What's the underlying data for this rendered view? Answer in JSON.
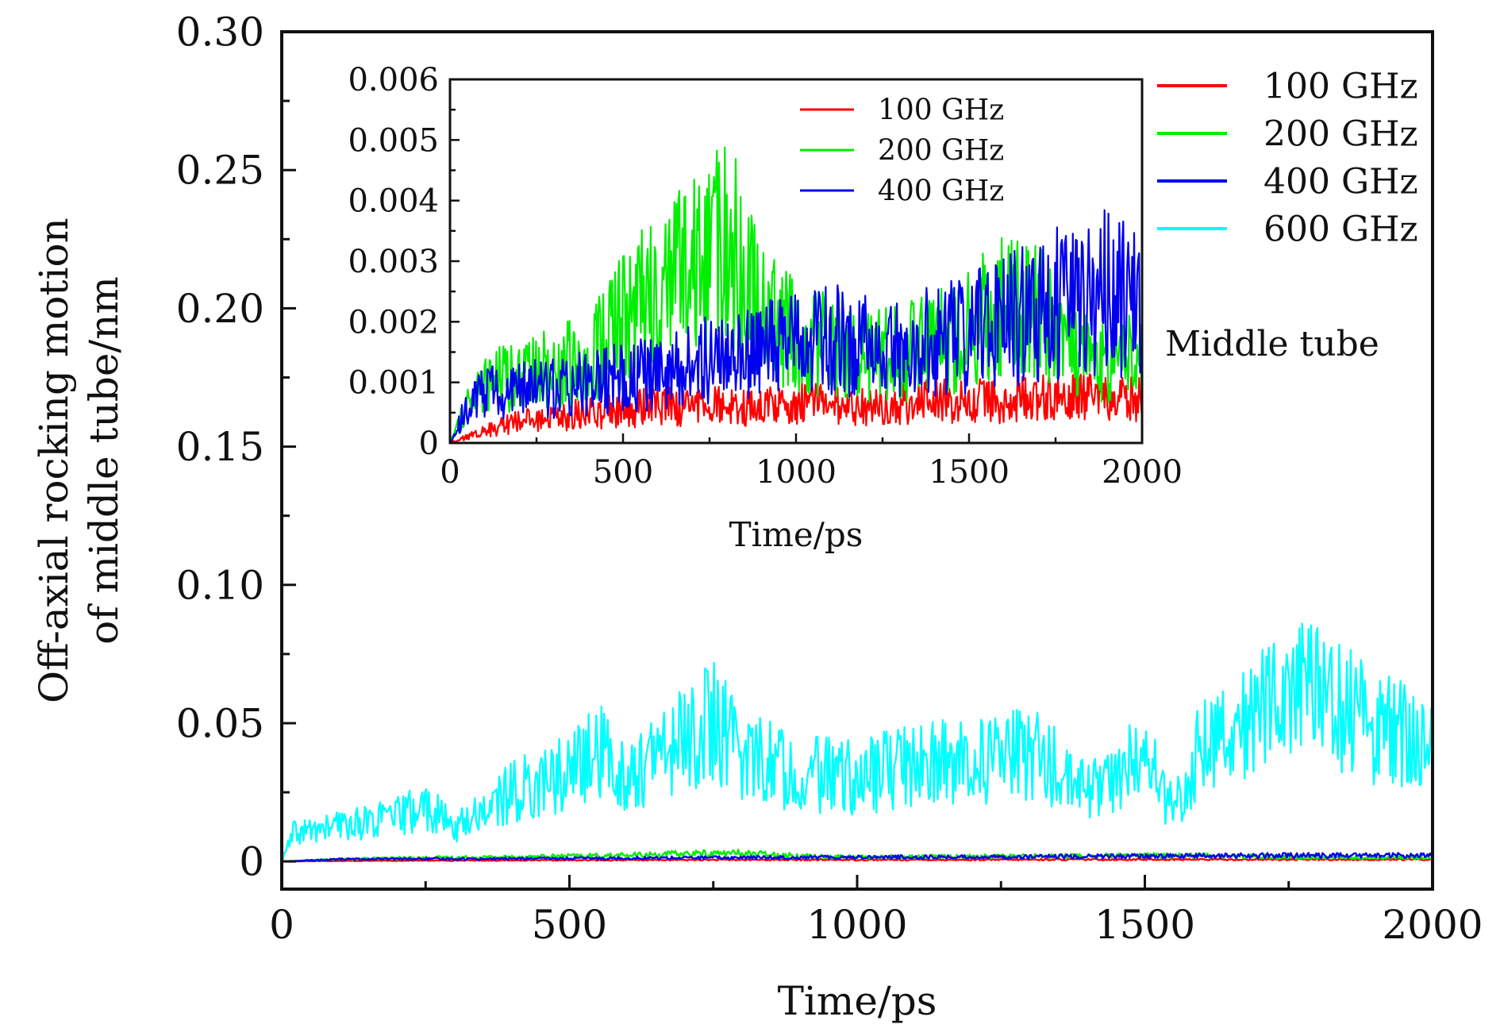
{
  "chart_data": [
    {
      "type": "line",
      "name": "main",
      "xlabel": "Time/ps",
      "ylabel": [
        "Off-axial rocking motion",
        "of middle tube/nm"
      ],
      "xlim": [
        0,
        2000
      ],
      "ylim": [
        -0.01,
        0.3
      ],
      "x_ticks": [
        0,
        500,
        1000,
        1500,
        2000
      ],
      "y_ticks": [
        0,
        0.05,
        0.1,
        0.15,
        0.2,
        0.25,
        0.3
      ],
      "x_tick_labels": [
        "0",
        "500",
        "1000",
        "1500",
        "2000"
      ],
      "y_tick_labels": [
        "0",
        "0.05",
        "0.10",
        "0.15",
        "0.20",
        "0.25",
        "0.30"
      ],
      "legend_placement": "top-right",
      "annotation": "Middle tube",
      "series": [
        {
          "name": "100 GHz",
          "color": "#ff0000",
          "x": [
            0,
            100,
            200,
            400,
            600,
            800,
            1000,
            1200,
            1400,
            1600,
            1800,
            2000
          ],
          "y": [
            0,
            0.0002,
            0.0003,
            0.0004,
            0.0005,
            0.0006,
            0.0006,
            0.0006,
            0.0007,
            0.0007,
            0.0007,
            0.0007
          ]
        },
        {
          "name": "200 GHz",
          "color": "#00ee00",
          "x": [
            0,
            100,
            200,
            400,
            600,
            700,
            800,
            900,
            1000,
            1200,
            1400,
            1600,
            1800,
            2000
          ],
          "y": [
            0,
            0.0008,
            0.0012,
            0.0016,
            0.0022,
            0.0028,
            0.003,
            0.002,
            0.0016,
            0.0018,
            0.002,
            0.0022,
            0.0014,
            0.0014
          ]
        },
        {
          "name": "400 GHz",
          "color": "#0000ee",
          "x": [
            0,
            100,
            200,
            400,
            600,
            800,
            1000,
            1200,
            1400,
            1600,
            1800,
            2000
          ],
          "y": [
            0,
            0.0008,
            0.0009,
            0.001,
            0.0012,
            0.0014,
            0.0016,
            0.0016,
            0.0018,
            0.002,
            0.0022,
            0.0021
          ]
        },
        {
          "name": "600 GHz",
          "color": "#00ffff",
          "x": [
            0,
            20,
            100,
            200,
            250,
            300,
            400,
            500,
            550,
            600,
            700,
            750,
            800,
            900,
            1000,
            1100,
            1200,
            1300,
            1400,
            1500,
            1550,
            1600,
            1700,
            1750,
            1800,
            1900,
            2000
          ],
          "y": [
            0,
            0.01,
            0.013,
            0.016,
            0.02,
            0.012,
            0.025,
            0.032,
            0.04,
            0.03,
            0.045,
            0.05,
            0.04,
            0.032,
            0.03,
            0.036,
            0.035,
            0.04,
            0.025,
            0.038,
            0.018,
            0.045,
            0.055,
            0.065,
            0.06,
            0.05,
            0.04
          ]
        }
      ]
    },
    {
      "type": "line",
      "name": "inset",
      "xlabel": "Time/ps",
      "ylabel": "",
      "xlim": [
        0,
        2000
      ],
      "ylim": [
        0,
        0.006
      ],
      "x_ticks": [
        0,
        500,
        1000,
        1500,
        2000
      ],
      "y_ticks": [
        0,
        0.001,
        0.002,
        0.003,
        0.004,
        0.005,
        0.006
      ],
      "x_tick_labels": [
        "0",
        "500",
        "1000",
        "1500",
        "2000"
      ],
      "y_tick_labels": [
        "0",
        "0.001",
        "0.002",
        "0.003",
        "0.004",
        "0.005",
        "0.006"
      ],
      "legend_placement": "top-center",
      "series": [
        {
          "name": "100 GHz",
          "color": "#ff0000",
          "x": [
            0,
            100,
            200,
            300,
            400,
            600,
            800,
            1000,
            1200,
            1400,
            1600,
            1800,
            2000
          ],
          "y": [
            0,
            0.0002,
            0.00035,
            0.0004,
            0.0005,
            0.0006,
            0.0006,
            0.00065,
            0.0006,
            0.0007,
            0.0007,
            0.00075,
            0.0007
          ]
        },
        {
          "name": "200 GHz",
          "color": "#00ee00",
          "x": [
            0,
            50,
            100,
            200,
            300,
            400,
            500,
            600,
            700,
            800,
            850,
            900,
            1000,
            1100,
            1200,
            1300,
            1400,
            1500,
            1600,
            1700,
            1800,
            1900,
            2000
          ],
          "y": [
            0,
            0.0006,
            0.0009,
            0.0012,
            0.0012,
            0.0015,
            0.002,
            0.0025,
            0.003,
            0.0032,
            0.003,
            0.0022,
            0.0018,
            0.0016,
            0.0014,
            0.0015,
            0.0016,
            0.0019,
            0.0022,
            0.0021,
            0.0017,
            0.0013,
            0.0014
          ]
        },
        {
          "name": "400 GHz",
          "color": "#0000ee",
          "x": [
            0,
            50,
            100,
            200,
            300,
            400,
            500,
            600,
            700,
            800,
            900,
            1000,
            1100,
            1200,
            1300,
            1400,
            1500,
            1600,
            1700,
            1800,
            1900,
            2000
          ],
          "y": [
            0,
            0.0006,
            0.0008,
            0.0009,
            0.0009,
            0.001,
            0.0011,
            0.0012,
            0.0013,
            0.0014,
            0.0015,
            0.0016,
            0.0017,
            0.0016,
            0.0015,
            0.0017,
            0.0018,
            0.002,
            0.0022,
            0.0024,
            0.0025,
            0.0022
          ]
        }
      ]
    }
  ]
}
